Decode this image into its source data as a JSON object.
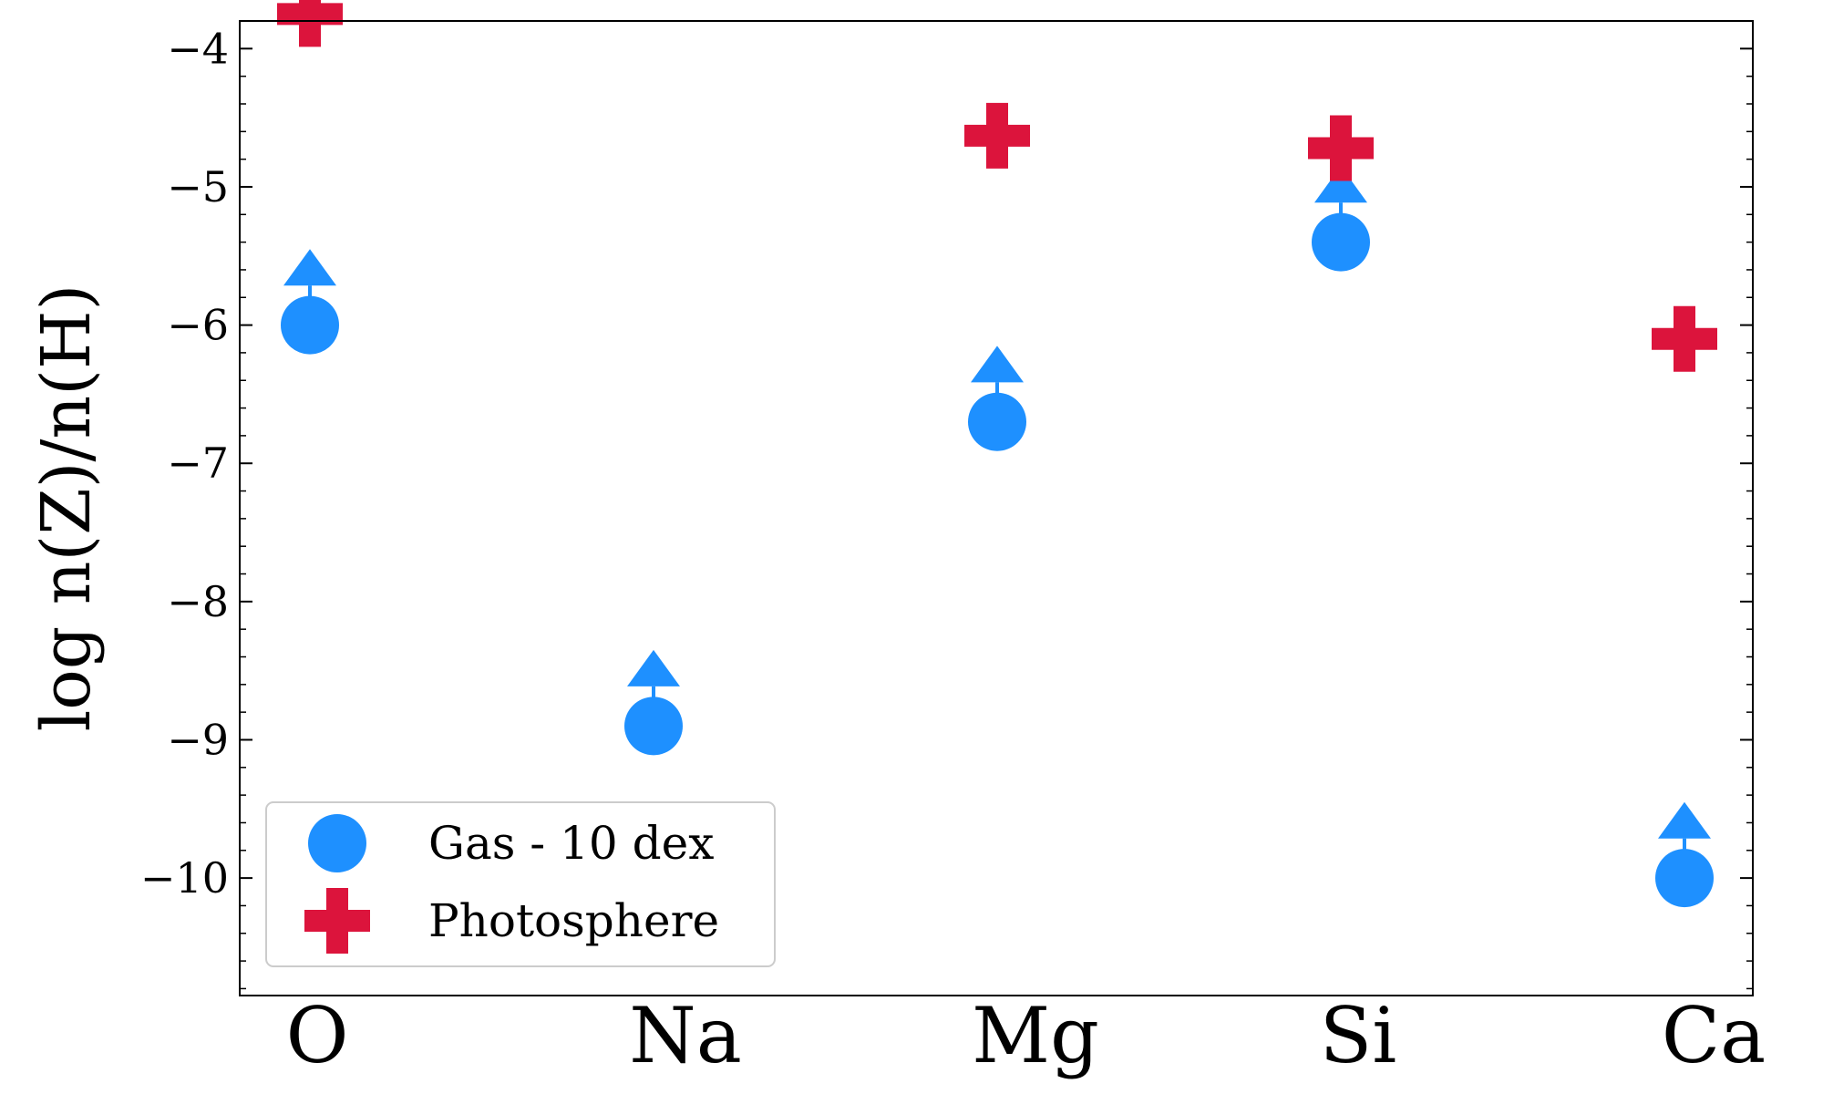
{
  "chart_data": {
    "type": "scatter",
    "title": "",
    "xlabel": "",
    "ylabel": "log n(Z)/n(H)",
    "categories": [
      "O",
      "Na",
      "Mg",
      "Si",
      "Ca"
    ],
    "ylim": [
      -10.85,
      -3.8
    ],
    "yticks": [
      -4,
      -5,
      -6,
      -7,
      -8,
      -9,
      -10
    ],
    "ytick_labels": [
      "−4",
      "−5",
      "−6",
      "−7",
      "−8",
      "−9",
      "−10"
    ],
    "grid": false,
    "legend_position": "lower-left",
    "series": [
      {
        "name": "Gas - 10 dex",
        "marker": "circle",
        "color": "#1e90ff",
        "lower_limit": true,
        "values": [
          -6.0,
          -8.9,
          -6.7,
          -5.4,
          -10.0
        ],
        "limit_arrow_tips": [
          -5.45,
          -8.35,
          -6.15,
          -4.85,
          -9.45
        ]
      },
      {
        "name": "Photosphere",
        "marker": "plus",
        "color": "#dc143c",
        "values": [
          -3.75,
          null,
          -4.63,
          -4.72,
          -6.1
        ]
      }
    ]
  }
}
